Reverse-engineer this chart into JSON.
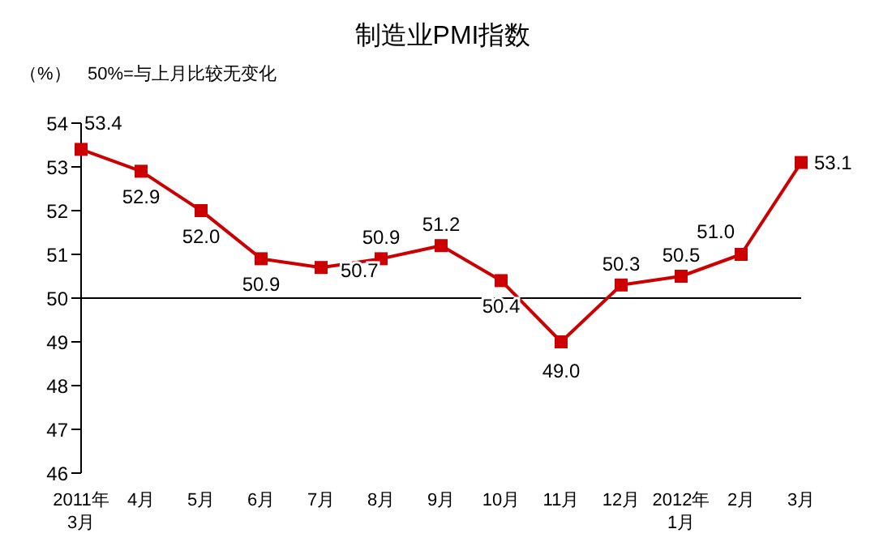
{
  "chart_data": {
    "type": "line",
    "title": "制造业PMI指数",
    "ylabel": "（%）",
    "annotations": [
      "50%=与上月比较无变化"
    ],
    "categories": [
      "2011年\n3月",
      "4月",
      "5月",
      "6月",
      "7月",
      "8月",
      "9月",
      "10月",
      "11月",
      "12月",
      "2012年\n1月",
      "2月",
      "3月"
    ],
    "series": [
      {
        "color": "#cc0000",
        "values": [
          53.4,
          52.9,
          52.0,
          50.9,
          50.7,
          50.9,
          51.2,
          50.4,
          49.0,
          50.3,
          50.5,
          51.0,
          53.1
        ],
        "value_labels": [
          "53.4",
          "52.9",
          "52.0",
          "50.9",
          "50.7",
          "50.9",
          "51.2",
          "50.4",
          "49.0",
          "50.3",
          "50.5",
          "51.0",
          "53.1"
        ]
      }
    ],
    "ylim": [
      46,
      54
    ],
    "yticks": [
      46,
      47,
      48,
      49,
      50,
      51,
      52,
      53,
      54
    ],
    "ref_lines": [
      {
        "axis": "y",
        "value": 50,
        "color": "#000000"
      }
    ],
    "marker": "square",
    "line_style": "solid",
    "grid": false,
    "legend": false
  }
}
